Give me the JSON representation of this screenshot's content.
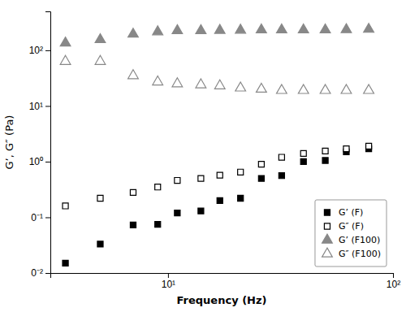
{
  "chart_data": {
    "type": "scatter",
    "xlabel": "Frequency (Hz)",
    "ylabel": "G’, G″ (Pa)",
    "log": true,
    "xlim": [
      3.0,
      100.0
    ],
    "ylim": [
      0.01,
      500.0
    ],
    "xticks": [
      {
        "value": 10,
        "label": "10¹"
      },
      {
        "value": 100,
        "label": "10²"
      }
    ],
    "yticks": [
      {
        "value": 0.01,
        "label": "0⁻²"
      },
      {
        "value": 0.1,
        "label": "0⁻¹"
      },
      {
        "value": 1,
        "label": "10⁰"
      },
      {
        "value": 10,
        "label": "10¹"
      },
      {
        "value": 100,
        "label": "10²"
      }
    ],
    "grid": false,
    "legend": "lower right",
    "series": [
      {
        "name": "G’ (F)",
        "color": "black",
        "marker": "square",
        "line_style": "none",
        "x": [
          3.5,
          5.0,
          7.0,
          9.0,
          11.0,
          14.0,
          17.0,
          21.0,
          26.0,
          32.0,
          40.0,
          50.0,
          62.0,
          78.0
        ],
        "values": [
          0.015,
          0.033,
          0.073,
          0.075,
          0.12,
          0.13,
          0.2,
          0.22,
          0.5,
          0.56,
          1.0,
          1.05,
          1.5,
          1.7
        ]
      },
      {
        "name": "G″ (F)",
        "color": "black",
        "marker": "square-open",
        "line_style": "none",
        "x": [
          3.5,
          5.0,
          7.0,
          9.0,
          11.0,
          14.0,
          17.0,
          21.0,
          26.0,
          32.0,
          40.0,
          50.0,
          62.0,
          78.0
        ],
        "values": [
          0.16,
          0.22,
          0.28,
          0.35,
          0.46,
          0.5,
          0.57,
          0.65,
          0.9,
          1.2,
          1.4,
          1.55,
          1.7,
          1.9
        ]
      },
      {
        "name": "G’ (F100)",
        "color": "#888888",
        "marker": "triangle-up",
        "line_style": "none",
        "x": [
          3.5,
          5.0,
          7.0,
          9.0,
          11.0,
          14.0,
          17.0,
          21.0,
          26.0,
          32.0,
          40.0,
          50.0,
          62.0,
          78.0
        ],
        "values": [
          135,
          155,
          195,
          215,
          225,
          225,
          228,
          230,
          232,
          232,
          232,
          232,
          235,
          238
        ]
      },
      {
        "name": "G″ (F100)",
        "color": "#888888",
        "marker": "triangle-up-open",
        "line_style": "none",
        "x": [
          3.5,
          5.0,
          7.0,
          9.0,
          11.0,
          14.0,
          17.0,
          21.0,
          26.0,
          32.0,
          40.0,
          50.0,
          62.0,
          78.0
        ],
        "values": [
          63,
          63,
          35,
          27,
          25,
          24,
          23,
          21,
          20,
          19,
          19,
          19,
          19,
          19
        ]
      }
    ]
  }
}
